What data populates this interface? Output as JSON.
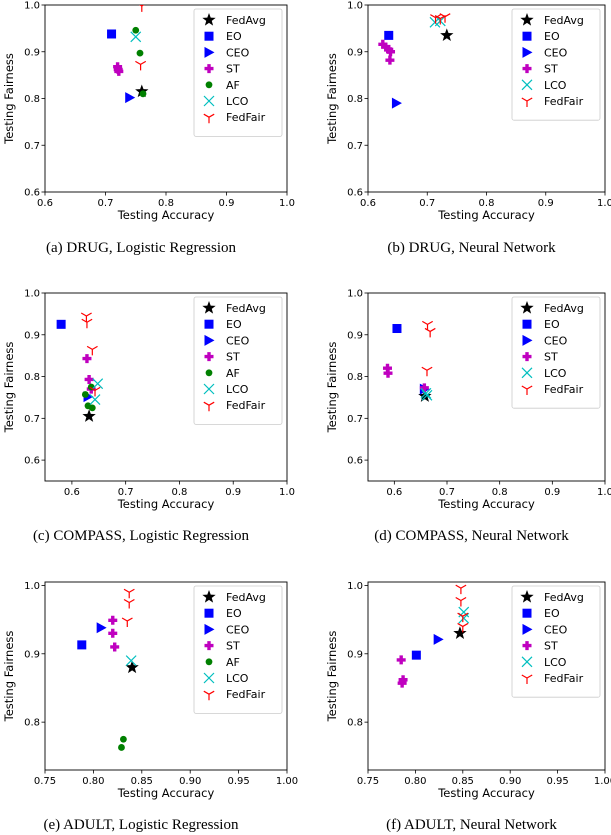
{
  "chart_data": [
    {
      "type": "scatter",
      "caption": "(a) DRUG, Logistic Regression",
      "xlabel": "Testing Accuracy",
      "ylabel": "Testing Fairness",
      "xlim": [
        0.6,
        1.0
      ],
      "ylim": [
        0.6,
        1.0
      ],
      "xticks": [
        "0.6",
        "0.7",
        "0.8",
        "0.9",
        "1.0"
      ],
      "yticks": [
        "0.6",
        "0.7",
        "0.8",
        "0.9",
        "1.0"
      ],
      "legend_position": "top-right",
      "series": [
        {
          "name": "FedAvg",
          "marker": "star",
          "color": "#000000",
          "points": [
            [
              0.76,
              0.815
            ]
          ]
        },
        {
          "name": "EO",
          "marker": "square",
          "color": "#0000ff",
          "points": [
            [
              0.71,
              0.938
            ]
          ]
        },
        {
          "name": "CEO",
          "marker": "triangle-right",
          "color": "#0000ff",
          "points": [
            [
              0.74,
              0.802
            ]
          ]
        },
        {
          "name": "ST",
          "marker": "plus",
          "color": "#bf00bf",
          "points": [
            [
              0.72,
              0.868
            ],
            [
              0.721,
              0.862
            ],
            [
              0.722,
              0.858
            ]
          ]
        },
        {
          "name": "AF",
          "marker": "circle",
          "color": "#008000",
          "points": [
            [
              0.75,
              0.946
            ],
            [
              0.757,
              0.897
            ],
            [
              0.762,
              0.81
            ]
          ]
        },
        {
          "name": "LCO",
          "marker": "x",
          "color": "#00bfbf",
          "points": [
            [
              0.75,
              0.932
            ]
          ]
        },
        {
          "name": "FedFair",
          "marker": "tri-down",
          "color": "#ff0000",
          "points": [
            [
              0.76,
              0.998
            ],
            [
              0.758,
              0.873
            ]
          ]
        }
      ]
    },
    {
      "type": "scatter",
      "caption": "(b) DRUG, Neural Network",
      "xlabel": "Testing Accuracy",
      "ylabel": "Testing Fairness",
      "xlim": [
        0.6,
        1.0
      ],
      "ylim": [
        0.6,
        1.0
      ],
      "xticks": [
        "0.6",
        "0.7",
        "0.8",
        "0.9",
        "1.0"
      ],
      "yticks": [
        "0.6",
        "0.7",
        "0.8",
        "0.9",
        "1.0"
      ],
      "legend_position": "top-right",
      "series": [
        {
          "name": "FedAvg",
          "marker": "star",
          "color": "#000000",
          "points": [
            [
              0.733,
              0.935
            ]
          ]
        },
        {
          "name": "EO",
          "marker": "square",
          "color": "#0000ff",
          "points": [
            [
              0.635,
              0.935
            ]
          ]
        },
        {
          "name": "CEO",
          "marker": "triangle-right",
          "color": "#0000ff",
          "points": [
            [
              0.648,
              0.79
            ]
          ]
        },
        {
          "name": "ST",
          "marker": "plus",
          "color": "#bf00bf",
          "points": [
            [
              0.625,
              0.916
            ],
            [
              0.63,
              0.91
            ],
            [
              0.635,
              0.905
            ],
            [
              0.638,
              0.9
            ],
            [
              0.637,
              0.882
            ]
          ]
        },
        {
          "name": "LCO",
          "marker": "x",
          "color": "#00bfbf",
          "points": [
            [
              0.713,
              0.963
            ],
            [
              0.722,
              0.966
            ]
          ]
        },
        {
          "name": "FedFair",
          "marker": "tri-down",
          "color": "#ff0000",
          "points": [
            [
              0.714,
              0.973
            ],
            [
              0.722,
              0.971
            ],
            [
              0.73,
              0.975
            ]
          ]
        }
      ]
    },
    {
      "type": "scatter",
      "caption": "(c) COMPASS, Logistic Regression",
      "xlabel": "Testing Accuracy",
      "ylabel": "Testing Fairness",
      "xlim": [
        0.55,
        1.0
      ],
      "ylim": [
        0.55,
        1.0
      ],
      "xticks": [
        "0.6",
        "0.7",
        "0.8",
        "0.9",
        "1.0"
      ],
      "yticks": [
        "0.6",
        "0.7",
        "0.8",
        "0.9",
        "1.0"
      ],
      "legend_position": "top-right",
      "series": [
        {
          "name": "FedAvg",
          "marker": "star",
          "color": "#000000",
          "points": [
            [
              0.632,
              0.705
            ]
          ]
        },
        {
          "name": "EO",
          "marker": "square",
          "color": "#0000ff",
          "points": [
            [
              0.58,
              0.925
            ]
          ]
        },
        {
          "name": "CEO",
          "marker": "triangle-right",
          "color": "#0000ff",
          "points": [
            [
              0.63,
              0.752
            ]
          ]
        },
        {
          "name": "ST",
          "marker": "plus",
          "color": "#bf00bf",
          "points": [
            [
              0.628,
              0.843
            ],
            [
              0.632,
              0.793
            ],
            [
              0.636,
              0.77
            ]
          ]
        },
        {
          "name": "AF",
          "marker": "circle",
          "color": "#008000",
          "points": [
            [
              0.625,
              0.757
            ],
            [
              0.63,
              0.73
            ],
            [
              0.638,
              0.725
            ],
            [
              0.636,
              0.775
            ]
          ]
        },
        {
          "name": "LCO",
          "marker": "x",
          "color": "#00bfbf",
          "points": [
            [
              0.648,
              0.783
            ],
            [
              0.643,
              0.745
            ]
          ]
        },
        {
          "name": "FedFair",
          "marker": "tri-down",
          "color": "#ff0000",
          "points": [
            [
              0.627,
              0.945
            ],
            [
              0.628,
              0.93
            ],
            [
              0.638,
              0.865
            ],
            [
              0.643,
              0.767
            ]
          ]
        }
      ]
    },
    {
      "type": "scatter",
      "caption": "(d) COMPASS, Neural Network",
      "xlabel": "Testing Accuracy",
      "ylabel": "Testing Fairness",
      "xlim": [
        0.55,
        1.0
      ],
      "ylim": [
        0.55,
        1.0
      ],
      "xticks": [
        "0.6",
        "0.7",
        "0.8",
        "0.9",
        "1.0"
      ],
      "yticks": [
        "0.6",
        "0.7",
        "0.8",
        "0.9",
        "1.0"
      ],
      "legend_position": "top-right",
      "series": [
        {
          "name": "FedAvg",
          "marker": "star",
          "color": "#000000",
          "points": [
            [
              0.658,
              0.753
            ]
          ]
        },
        {
          "name": "EO",
          "marker": "square",
          "color": "#0000ff",
          "points": [
            [
              0.605,
              0.915
            ]
          ]
        },
        {
          "name": "CEO",
          "marker": "triangle-right",
          "color": "#0000ff",
          "points": [
            [
              0.657,
              0.77
            ]
          ]
        },
        {
          "name": "ST",
          "marker": "plus",
          "color": "#bf00bf",
          "points": [
            [
              0.587,
              0.82
            ],
            [
              0.588,
              0.808
            ],
            [
              0.657,
              0.773
            ]
          ]
        },
        {
          "name": "LCO",
          "marker": "x",
          "color": "#00bfbf",
          "points": [
            [
              0.66,
              0.76
            ],
            [
              0.662,
              0.755
            ]
          ]
        },
        {
          "name": "FedFair",
          "marker": "tri-down",
          "color": "#ff0000",
          "points": [
            [
              0.663,
              0.925
            ],
            [
              0.668,
              0.908
            ],
            [
              0.662,
              0.815
            ]
          ]
        }
      ]
    },
    {
      "type": "scatter",
      "caption": "(e) ADULT, Logistic Regression",
      "xlabel": "Testing Accuracy",
      "ylabel": "Testing Fairness",
      "xlim": [
        0.75,
        1.0
      ],
      "ylim": [
        0.73,
        1.005
      ],
      "xticks": [
        "0.75",
        "0.80",
        "0.85",
        "0.90",
        "0.95",
        "1.00"
      ],
      "yticks": [
        "0.8",
        "0.9",
        "1.0"
      ],
      "legend_position": "top-right",
      "series": [
        {
          "name": "FedAvg",
          "marker": "star",
          "color": "#000000",
          "points": [
            [
              0.84,
              0.88
            ]
          ]
        },
        {
          "name": "EO",
          "marker": "square",
          "color": "#0000ff",
          "points": [
            [
              0.788,
              0.913
            ]
          ]
        },
        {
          "name": "CEO",
          "marker": "triangle-right",
          "color": "#0000ff",
          "points": [
            [
              0.808,
              0.938
            ]
          ]
        },
        {
          "name": "ST",
          "marker": "plus",
          "color": "#bf00bf",
          "points": [
            [
              0.82,
              0.949
            ],
            [
              0.82,
              0.93
            ],
            [
              0.822,
              0.91
            ]
          ]
        },
        {
          "name": "AF",
          "marker": "circle",
          "color": "#008000",
          "points": [
            [
              0.831,
              0.775
            ],
            [
              0.829,
              0.763
            ]
          ]
        },
        {
          "name": "LCO",
          "marker": "x",
          "color": "#00bfbf",
          "points": [
            [
              0.839,
              0.89
            ]
          ]
        },
        {
          "name": "FedFair",
          "marker": "tri-down",
          "color": "#ff0000",
          "points": [
            [
              0.837,
              0.99
            ],
            [
              0.837,
              0.975
            ],
            [
              0.835,
              0.948
            ]
          ]
        }
      ]
    },
    {
      "type": "scatter",
      "caption": "(f) ADULT, Neural Network",
      "xlabel": "Testing Accuracy",
      "ylabel": "Testing Fairness",
      "xlim": [
        0.75,
        1.0
      ],
      "ylim": [
        0.73,
        1.005
      ],
      "xticks": [
        "0.75",
        "0.80",
        "0.85",
        "0.90",
        "0.95",
        "1.00"
      ],
      "yticks": [
        "0.8",
        "0.9",
        "1.0"
      ],
      "legend_position": "top-right",
      "series": [
        {
          "name": "FedAvg",
          "marker": "star",
          "color": "#000000",
          "points": [
            [
              0.847,
              0.93
            ]
          ]
        },
        {
          "name": "EO",
          "marker": "square",
          "color": "#0000ff",
          "points": [
            [
              0.801,
              0.898
            ]
          ]
        },
        {
          "name": "CEO",
          "marker": "triangle-right",
          "color": "#0000ff",
          "points": [
            [
              0.824,
              0.921
            ]
          ]
        },
        {
          "name": "ST",
          "marker": "plus",
          "color": "#bf00bf",
          "points": [
            [
              0.785,
              0.891
            ],
            [
              0.787,
              0.862
            ],
            [
              0.786,
              0.857
            ]
          ]
        },
        {
          "name": "LCO",
          "marker": "x",
          "color": "#00bfbf",
          "points": [
            [
              0.851,
              0.961
            ],
            [
              0.851,
              0.952
            ]
          ]
        },
        {
          "name": "FedFair",
          "marker": "tri-down",
          "color": "#ff0000",
          "points": [
            [
              0.848,
              0.996
            ],
            [
              0.848,
              0.978
            ],
            [
              0.85,
              0.955
            ],
            [
              0.85,
              0.94
            ]
          ]
        }
      ]
    }
  ]
}
